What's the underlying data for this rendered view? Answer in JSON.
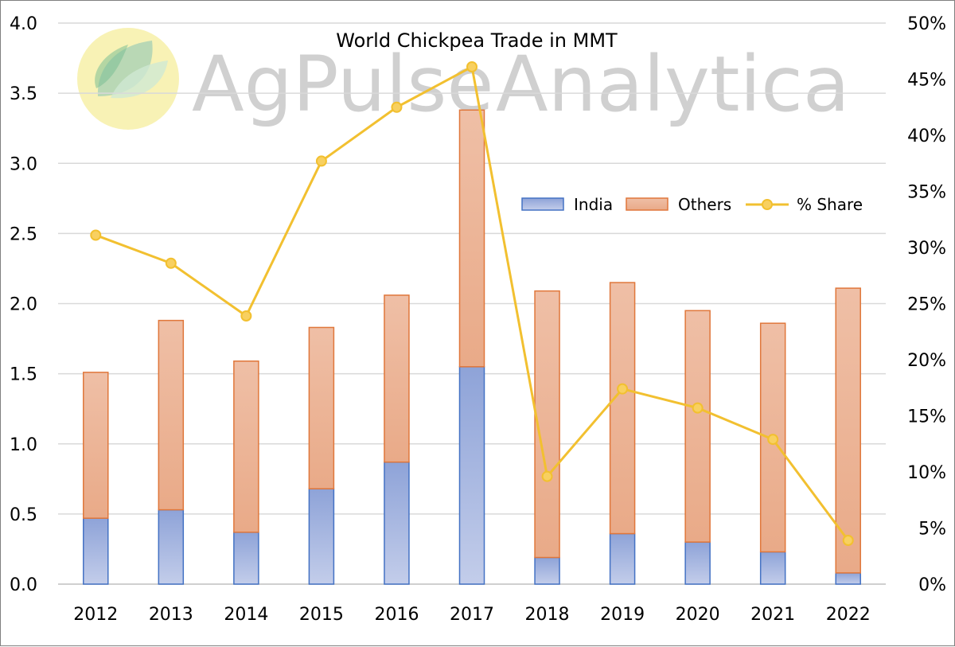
{
  "watermark": {
    "brand": "AgPulse",
    "suffix": "Analytica"
  },
  "colors": {
    "india_fill": "#9fb0dc",
    "india_stroke": "#4472c4",
    "others_fill": "#ebb296",
    "others_stroke": "#e0773b",
    "share_line": "#f2c030",
    "share_marker_fill": "#f8d060",
    "grid": "#d9d9d9"
  },
  "chart_data": {
    "type": "bar",
    "title": "World Chickpea Trade in MMT",
    "stacked": true,
    "categories": [
      "2012",
      "2013",
      "2014",
      "2015",
      "2016",
      "2017",
      "2018",
      "2019",
      "2020",
      "2021",
      "2022"
    ],
    "series": [
      {
        "name": "India",
        "type": "bar",
        "axis": "left",
        "values": [
          0.47,
          0.53,
          0.37,
          0.68,
          0.87,
          1.55,
          0.19,
          0.36,
          0.3,
          0.23,
          0.08
        ]
      },
      {
        "name": "Others",
        "type": "bar",
        "axis": "left",
        "values": [
          1.04,
          1.35,
          1.22,
          1.15,
          1.19,
          1.83,
          1.9,
          1.79,
          1.65,
          1.63,
          2.03
        ]
      },
      {
        "name": "% Share",
        "type": "line",
        "axis": "right",
        "values": [
          31.1,
          28.6,
          23.9,
          37.7,
          42.5,
          46.1,
          9.6,
          17.4,
          15.7,
          12.9,
          3.9
        ]
      }
    ],
    "y_left": {
      "ylim": [
        0,
        4.0
      ],
      "ticks": [
        "0.0",
        "0.5",
        "1.0",
        "1.5",
        "2.0",
        "2.5",
        "3.0",
        "3.5",
        "4.0"
      ]
    },
    "y_right": {
      "ylim": [
        0,
        50
      ],
      "ticks": [
        "0%",
        "5%",
        "10%",
        "15%",
        "20%",
        "25%",
        "30%",
        "35%",
        "40%",
        "45%",
        "50%"
      ]
    },
    "grid": true,
    "legend": {
      "position": "right-middle",
      "entries": [
        "India",
        "Others",
        "% Share"
      ]
    }
  }
}
